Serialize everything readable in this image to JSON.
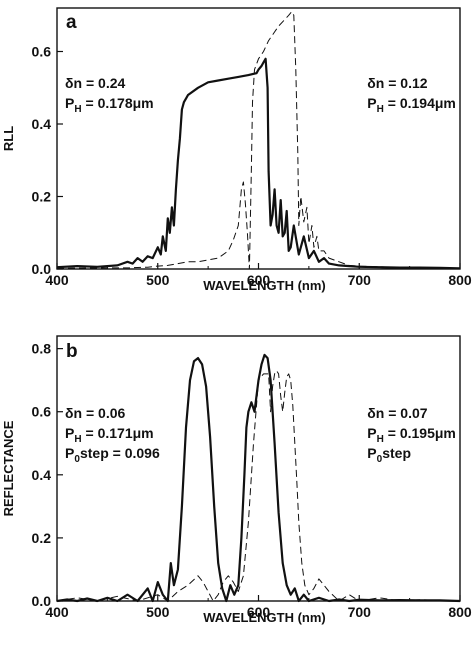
{
  "chart_data": [
    {
      "type": "line",
      "panel_label": "a",
      "xlabel": "WAVELENGTH  (nm)",
      "ylabel": "RLL",
      "xlim": [
        400,
        800
      ],
      "ylim": [
        0,
        0.72
      ],
      "xticks": [
        400,
        500,
        600,
        700,
        800
      ],
      "yticks": [
        0.0,
        0.2,
        0.4,
        0.6
      ],
      "ytick_labels": [
        "0.0",
        "0.2",
        "0.4",
        "0.6"
      ],
      "grid": false,
      "legend": "none",
      "annotations": [
        {
          "lines": [
            {
              "pre": "δn = 0.24",
              "sub": "",
              "post": ""
            },
            {
              "pre": "P",
              "sub": "H",
              "post": " = 0.178μm"
            }
          ],
          "x": 408,
          "y": 0.5
        },
        {
          "lines": [
            {
              "pre": "δn = 0.12",
              "sub": "",
              "post": ""
            },
            {
              "pre": "P",
              "sub": "H",
              "post": " = 0.194μm"
            }
          ],
          "x": 708,
          "y": 0.5
        }
      ],
      "series": [
        {
          "style": "solid",
          "x": [
            400,
            420,
            440,
            460,
            470,
            475,
            480,
            485,
            490,
            495,
            500,
            503,
            505,
            508,
            510,
            512,
            514,
            516,
            518,
            520,
            522,
            524,
            526,
            528,
            530,
            540,
            550,
            560,
            570,
            580,
            590,
            598,
            600,
            603,
            605,
            607,
            609,
            610,
            612,
            614,
            616,
            618,
            620,
            622,
            624,
            626,
            628,
            630,
            632,
            635,
            640,
            645,
            650,
            655,
            660,
            665,
            670,
            680,
            690,
            700,
            720,
            740,
            760,
            780,
            800
          ],
          "y": [
            0.005,
            0.008,
            0.006,
            0.01,
            0.02,
            0.015,
            0.03,
            0.02,
            0.035,
            0.03,
            0.06,
            0.04,
            0.09,
            0.05,
            0.14,
            0.1,
            0.17,
            0.12,
            0.22,
            0.3,
            0.36,
            0.44,
            0.46,
            0.47,
            0.48,
            0.5,
            0.515,
            0.52,
            0.525,
            0.53,
            0.535,
            0.54,
            0.55,
            0.56,
            0.57,
            0.58,
            0.5,
            0.27,
            0.12,
            0.15,
            0.22,
            0.12,
            0.1,
            0.19,
            0.09,
            0.1,
            0.16,
            0.05,
            0.06,
            0.12,
            0.04,
            0.09,
            0.03,
            0.05,
            0.02,
            0.03,
            0.015,
            0.01,
            0.008,
            0.006,
            0.005,
            0.004,
            0.004,
            0.003,
            0.002
          ]
        },
        {
          "style": "dashed",
          "x": [
            400,
            450,
            470,
            490,
            500,
            510,
            520,
            530,
            540,
            550,
            560,
            570,
            575,
            580,
            583,
            585,
            587,
            589,
            591,
            593,
            594,
            596,
            600,
            605,
            610,
            615,
            620,
            625,
            630,
            633,
            635,
            637,
            639,
            640,
            642,
            645,
            648,
            650,
            653,
            655,
            658,
            660,
            665,
            670,
            680,
            690,
            700,
            720,
            740,
            760,
            780,
            800
          ],
          "y": [
            0.002,
            0.003,
            0.003,
            0.005,
            0.008,
            0.01,
            0.015,
            0.02,
            0.02,
            0.025,
            0.03,
            0.05,
            0.08,
            0.12,
            0.22,
            0.24,
            0.18,
            0.1,
            0.0,
            0.28,
            0.46,
            0.55,
            0.58,
            0.6,
            0.63,
            0.65,
            0.67,
            0.685,
            0.7,
            0.71,
            0.7,
            0.55,
            0.32,
            0.12,
            0.2,
            0.13,
            0.17,
            0.07,
            0.12,
            0.06,
            0.09,
            0.05,
            0.05,
            0.03,
            0.02,
            0.01,
            0.008,
            0.006,
            0.004,
            0.003,
            0.002,
            0.002
          ]
        }
      ]
    },
    {
      "type": "line",
      "panel_label": "b",
      "xlabel": "WAVELENGTH  (nm)",
      "ylabel": "REFLECTANCE",
      "xlim": [
        400,
        800
      ],
      "ylim": [
        0,
        0.84
      ],
      "xticks": [
        400,
        500,
        600,
        700,
        800
      ],
      "yticks": [
        0.0,
        0.2,
        0.4,
        0.6,
        0.8
      ],
      "ytick_labels": [
        "0.0",
        "0.2",
        "0.4",
        "0.6",
        "0.8"
      ],
      "grid": false,
      "legend": "none",
      "annotations": [
        {
          "lines": [
            {
              "pre": "δn = 0.06",
              "sub": "",
              "post": ""
            },
            {
              "pre": "P",
              "sub": "H",
              "post": " = 0.171μm"
            },
            {
              "pre": "P",
              "sub": "0",
              "post": "step = 0.096"
            }
          ],
          "x": 408,
          "y": 0.58
        },
        {
          "lines": [
            {
              "pre": "δn = 0.07",
              "sub": "",
              "post": ""
            },
            {
              "pre": "P",
              "sub": "H",
              "post": " = 0.195μm"
            },
            {
              "pre": "P",
              "sub": "0",
              "post": "step"
            }
          ],
          "x": 708,
          "y": 0.58
        }
      ],
      "series": [
        {
          "style": "solid",
          "x": [
            400,
            410,
            420,
            430,
            440,
            450,
            460,
            470,
            480,
            490,
            495,
            500,
            505,
            510,
            513,
            516,
            520,
            524,
            528,
            532,
            536,
            540,
            544,
            548,
            552,
            556,
            560,
            564,
            568,
            572,
            576,
            580,
            583,
            586,
            588,
            590,
            593,
            596,
            600,
            603,
            606,
            609,
            612,
            616,
            620,
            624,
            628,
            632,
            636,
            640,
            645,
            650,
            660,
            670,
            680,
            690,
            700,
            720,
            740,
            760,
            780,
            800
          ],
          "y": [
            0.0,
            0.005,
            0.0,
            0.008,
            0.0,
            0.01,
            0.0,
            0.02,
            0.0,
            0.04,
            0.0,
            0.06,
            0.02,
            0.0,
            0.12,
            0.05,
            0.1,
            0.3,
            0.55,
            0.7,
            0.76,
            0.77,
            0.75,
            0.68,
            0.52,
            0.3,
            0.12,
            0.04,
            0.0,
            0.05,
            0.02,
            0.05,
            0.2,
            0.4,
            0.55,
            0.6,
            0.63,
            0.6,
            0.7,
            0.75,
            0.78,
            0.77,
            0.7,
            0.5,
            0.28,
            0.12,
            0.05,
            0.02,
            0.04,
            0.0,
            0.02,
            0.0,
            0.01,
            0.0,
            0.005,
            0.0,
            0.004,
            0.002,
            0.003,
            0.002,
            0.002,
            0.0
          ]
        },
        {
          "style": "dashed",
          "x": [
            400,
            420,
            440,
            460,
            480,
            500,
            510,
            520,
            530,
            540,
            545,
            550,
            555,
            560,
            565,
            570,
            575,
            580,
            585,
            590,
            595,
            600,
            605,
            610,
            612,
            614,
            616,
            618,
            620,
            622,
            624,
            626,
            628,
            630,
            632,
            634,
            636,
            638,
            640,
            643,
            646,
            650,
            655,
            660,
            670,
            680,
            690,
            700,
            720,
            740,
            760,
            780,
            800
          ],
          "y": [
            0.0,
            0.01,
            0.0,
            0.015,
            0.0,
            0.02,
            0.0,
            0.03,
            0.05,
            0.08,
            0.06,
            0.03,
            0.0,
            0.02,
            0.06,
            0.08,
            0.06,
            0.03,
            0.08,
            0.25,
            0.5,
            0.7,
            0.72,
            0.72,
            0.6,
            0.68,
            0.72,
            0.73,
            0.72,
            0.65,
            0.6,
            0.66,
            0.71,
            0.72,
            0.7,
            0.62,
            0.5,
            0.38,
            0.25,
            0.12,
            0.05,
            0.02,
            0.04,
            0.07,
            0.03,
            0.0,
            0.02,
            0.0,
            0.01,
            0.0,
            0.004,
            0.002,
            0.0
          ]
        }
      ]
    }
  ]
}
